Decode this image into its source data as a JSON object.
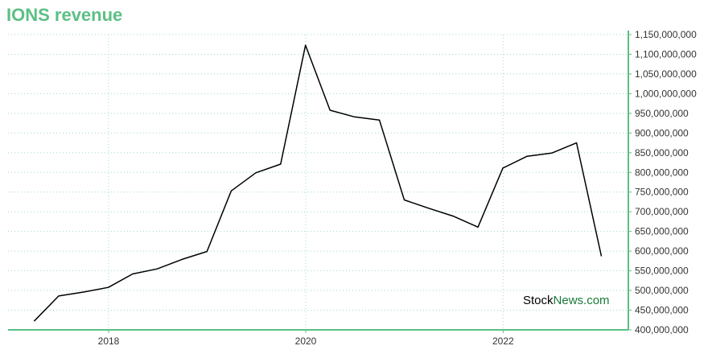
{
  "title": "IONS revenue",
  "watermark": {
    "part1": "Stock",
    "part2": "News.com"
  },
  "colors": {
    "accent": "#5cbf85",
    "grid": "#9fdcc0",
    "line": "#000000",
    "watermark_green": "#1a7a3a"
  },
  "chart_data": {
    "type": "line",
    "title": "IONS revenue",
    "xlabel": "",
    "ylabel": "",
    "x_tick_labels": [
      "2018",
      "2020",
      "2022"
    ],
    "y_tick_labels": [
      "400,000,000",
      "450,000,000",
      "500,000,000",
      "550,000,000",
      "600,000,000",
      "650,000,000",
      "700,000,000",
      "750,000,000",
      "800,000,000",
      "850,000,000",
      "900,000,000",
      "950,000,000",
      "1,000,000,000",
      "1,050,000,000",
      "1,100,000,000",
      "1,150,000,000"
    ],
    "ylim": [
      400000000,
      1150000000
    ],
    "y_axis_position": "right",
    "grid": true,
    "series": [
      {
        "x": [
          "2017-03-31",
          "2017-06-30",
          "2017-09-30",
          "2017-12-31",
          "2018-03-31",
          "2018-06-30",
          "2018-09-30",
          "2018-12-31",
          "2019-03-31",
          "2019-06-30",
          "2019-09-30",
          "2019-12-31",
          "2020-03-31",
          "2020-06-30",
          "2020-09-30",
          "2020-12-31",
          "2021-03-31",
          "2021-06-30",
          "2021-09-30",
          "2021-12-31",
          "2022-03-31",
          "2022-06-30",
          "2022-09-30",
          "2022-12-31"
        ],
        "values": [
          422000000,
          486000000,
          496000000,
          508000000,
          542000000,
          555000000,
          579000000,
          599000000,
          753000000,
          799000000,
          821000000,
          1123000000,
          958000000,
          941000000,
          933000000,
          730000000,
          709000000,
          689000000,
          661000000,
          811000000,
          841000000,
          849000000,
          875000000,
          587000000
        ]
      }
    ]
  }
}
